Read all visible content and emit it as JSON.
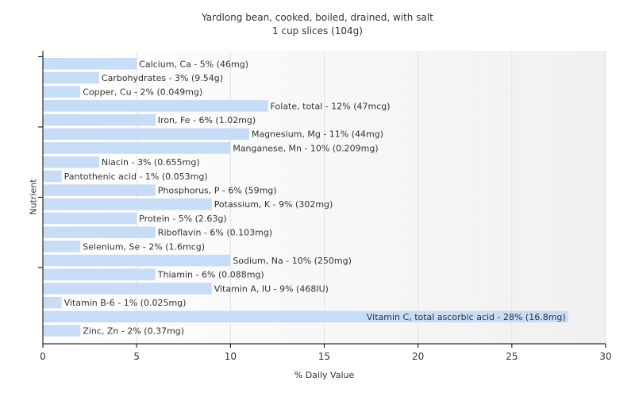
{
  "chart_data": {
    "type": "bar",
    "orientation": "horizontal",
    "title": "Yardlong bean, cooked, boiled, drained, with salt",
    "subtitle": "1 cup slices (104g)",
    "xlabel": "% Daily Value",
    "ylabel": "Nutrient",
    "xlim": [
      0,
      30
    ],
    "xticks": [
      "0",
      "5",
      "10",
      "15",
      "20",
      "25",
      "30"
    ],
    "grid": true,
    "bar_color": "#c6dcf7",
    "categories": [
      "Calcium, Ca",
      "Carbohydrates",
      "Copper, Cu",
      "Folate, total",
      "Iron, Fe",
      "Magnesium, Mg",
      "Manganese, Mn",
      "Niacin",
      "Pantothenic acid",
      "Phosphorus, P",
      "Potassium, K",
      "Protein",
      "Riboflavin",
      "Selenium, Se",
      "Sodium, Na",
      "Thiamin",
      "Vitamin A, IU",
      "Vitamin B-6",
      "Vitamin C, total ascorbic acid",
      "Zinc, Zn"
    ],
    "values": [
      5,
      3,
      2,
      12,
      6,
      11,
      10,
      3,
      1,
      6,
      9,
      5,
      6,
      2,
      10,
      6,
      9,
      1,
      28,
      2
    ],
    "labels": [
      "Calcium, Ca - 5% (46mg)",
      "Carbohydrates - 3% (9.54g)",
      "Copper, Cu - 2% (0.049mg)",
      "Folate, total - 12% (47mcg)",
      "Iron, Fe - 6% (1.02mg)",
      "Magnesium, Mg - 11% (44mg)",
      "Manganese, Mn - 10% (0.209mg)",
      "Niacin - 3% (0.655mg)",
      "Pantothenic acid - 1% (0.053mg)",
      "Phosphorus, P - 6% (59mg)",
      "Potassium, K - 9% (302mg)",
      "Protein - 5% (2.63g)",
      "Riboflavin - 6% (0.103mg)",
      "Selenium, Se - 2% (1.6mcg)",
      "Sodium, Na - 10% (250mg)",
      "Thiamin - 6% (0.088mg)",
      "Vitamin A, IU - 9% (468IU)",
      "Vitamin B-6 - 1% (0.025mg)",
      "Vitamin C, total ascorbic acid - 28% (16.8mg)",
      "Zinc, Zn - 2% (0.37mg)"
    ]
  }
}
